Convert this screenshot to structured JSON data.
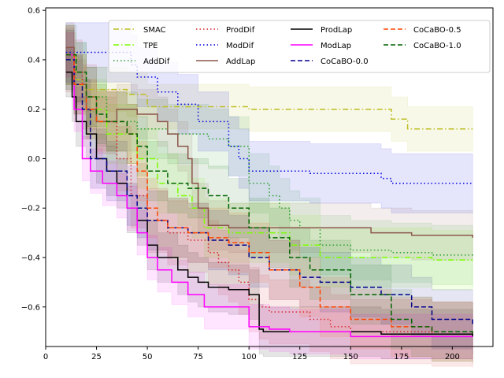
{
  "chart_data": {
    "type": "line",
    "title": "",
    "xlabel": "",
    "ylabel": "",
    "xlim": [
      0,
      220
    ],
    "ylim": [
      -0.76,
      0.61
    ],
    "xticks": [
      0,
      25,
      50,
      75,
      100,
      125,
      150,
      175,
      200
    ],
    "xtick_labels": [
      "0",
      "25",
      "50",
      "75",
      "100",
      "125",
      "150",
      "175",
      "200"
    ],
    "yticks": [
      -0.6,
      -0.4,
      -0.2,
      0.0,
      0.2,
      0.4,
      0.6
    ],
    "ytick_labels": [
      "−0.6",
      "−0.4",
      "−0.2",
      "0.0",
      "0.2",
      "0.4",
      "0.6"
    ],
    "legend_position": "top-right",
    "legend_columns": 4,
    "series": [
      {
        "name": "SMAC",
        "color": "#bcbd22",
        "dash": "dashdot",
        "band": 0.09,
        "points": [
          [
            10,
            0.42
          ],
          [
            15,
            0.32
          ],
          [
            18,
            0.28
          ],
          [
            40,
            0.26
          ],
          [
            50,
            0.21
          ],
          [
            95,
            0.21
          ],
          [
            100,
            0.2
          ],
          [
            168,
            0.2
          ],
          [
            170,
            0.16
          ],
          [
            178,
            0.12
          ],
          [
            210,
            0.12
          ]
        ]
      },
      {
        "name": "TPE",
        "color": "#7cfc00",
        "dash": "dashdot",
        "band": 0.12,
        "points": [
          [
            10,
            0.4
          ],
          [
            14,
            0.3
          ],
          [
            20,
            0.2
          ],
          [
            30,
            0.1
          ],
          [
            45,
            0.0
          ],
          [
            55,
            -0.1
          ],
          [
            65,
            -0.15
          ],
          [
            72,
            -0.2
          ],
          [
            78,
            -0.28
          ],
          [
            90,
            -0.3
          ],
          [
            120,
            -0.35
          ],
          [
            135,
            -0.4
          ],
          [
            150,
            -0.4
          ],
          [
            190,
            -0.41
          ],
          [
            210,
            -0.41
          ]
        ]
      },
      {
        "name": "AddDif",
        "color": "#2ca02c",
        "dash": "dotted",
        "band": 0.12,
        "points": [
          [
            10,
            0.42
          ],
          [
            14,
            0.35
          ],
          [
            20,
            0.25
          ],
          [
            30,
            0.15
          ],
          [
            45,
            0.12
          ],
          [
            60,
            0.1
          ],
          [
            70,
            0.1
          ],
          [
            80,
            0.08
          ],
          [
            90,
            0.05
          ],
          [
            100,
            -0.1
          ],
          [
            110,
            -0.15
          ],
          [
            115,
            -0.2
          ],
          [
            120,
            -0.25
          ],
          [
            125,
            -0.28
          ],
          [
            135,
            -0.35
          ],
          [
            150,
            -0.37
          ],
          [
            170,
            -0.38
          ],
          [
            190,
            -0.39
          ],
          [
            210,
            -0.4
          ]
        ]
      },
      {
        "name": "ProdDif",
        "color": "#d62728",
        "dash": "dotted",
        "band": 0.13,
        "points": [
          [
            10,
            0.4
          ],
          [
            14,
            0.35
          ],
          [
            18,
            0.25
          ],
          [
            25,
            0.15
          ],
          [
            35,
            0.0
          ],
          [
            42,
            -0.15
          ],
          [
            50,
            -0.25
          ],
          [
            60,
            -0.3
          ],
          [
            70,
            -0.33
          ],
          [
            80,
            -0.38
          ],
          [
            85,
            -0.42
          ],
          [
            90,
            -0.45
          ],
          [
            95,
            -0.5
          ],
          [
            100,
            -0.57
          ],
          [
            105,
            -0.6
          ],
          [
            110,
            -0.62
          ],
          [
            120,
            -0.62
          ],
          [
            130,
            -0.65
          ],
          [
            140,
            -0.68
          ],
          [
            150,
            -0.7
          ],
          [
            170,
            -0.7
          ],
          [
            190,
            -0.71
          ],
          [
            210,
            -0.72
          ]
        ]
      },
      {
        "name": "ModDif",
        "color": "#0000dd",
        "dash": "dotted",
        "band": 0.12,
        "points": [
          [
            10,
            0.43
          ],
          [
            38,
            0.43
          ],
          [
            42,
            0.38
          ],
          [
            45,
            0.33
          ],
          [
            55,
            0.27
          ],
          [
            65,
            0.22
          ],
          [
            75,
            0.15
          ],
          [
            85,
            0.15
          ],
          [
            90,
            0.05
          ],
          [
            95,
            0.0
          ],
          [
            100,
            -0.05
          ],
          [
            110,
            -0.05
          ],
          [
            125,
            -0.05
          ],
          [
            130,
            -0.06
          ],
          [
            160,
            -0.06
          ],
          [
            165,
            -0.08
          ],
          [
            170,
            -0.1
          ],
          [
            210,
            -0.1
          ]
        ]
      },
      {
        "name": "AddLap",
        "color": "#8c564b",
        "dash": "solid",
        "band": 0.1,
        "points": [
          [
            10,
            0.45
          ],
          [
            14,
            0.3
          ],
          [
            20,
            0.2
          ],
          [
            25,
            0.15
          ],
          [
            35,
            0.2
          ],
          [
            45,
            0.18
          ],
          [
            55,
            0.15
          ],
          [
            60,
            0.1
          ],
          [
            65,
            0.05
          ],
          [
            70,
            0.0
          ],
          [
            72,
            -0.1
          ],
          [
            75,
            -0.2
          ],
          [
            80,
            -0.27
          ],
          [
            90,
            -0.28
          ],
          [
            120,
            -0.28
          ],
          [
            140,
            -0.28
          ],
          [
            160,
            -0.3
          ],
          [
            180,
            -0.31
          ],
          [
            210,
            -0.32
          ]
        ]
      },
      {
        "name": "ProdLap",
        "color": "#000000",
        "dash": "solid",
        "band": 0.1,
        "points": [
          [
            10,
            0.35
          ],
          [
            13,
            0.25
          ],
          [
            15,
            0.15
          ],
          [
            20,
            0.1
          ],
          [
            25,
            0.0
          ],
          [
            30,
            -0.05
          ],
          [
            35,
            -0.1
          ],
          [
            40,
            -0.2
          ],
          [
            45,
            -0.25
          ],
          [
            50,
            -0.35
          ],
          [
            55,
            -0.4
          ],
          [
            65,
            -0.45
          ],
          [
            70,
            -0.48
          ],
          [
            75,
            -0.5
          ],
          [
            80,
            -0.52
          ],
          [
            90,
            -0.53
          ],
          [
            100,
            -0.55
          ],
          [
            104,
            -0.55
          ],
          [
            105,
            -0.69
          ],
          [
            107,
            -0.7
          ],
          [
            140,
            -0.7
          ],
          [
            165,
            -0.71
          ],
          [
            210,
            -0.72
          ]
        ]
      },
      {
        "name": "ModLap",
        "color": "#ff00ff",
        "dash": "solid",
        "band": 0.09,
        "points": [
          [
            10,
            0.42
          ],
          [
            14,
            0.2
          ],
          [
            18,
            0.0
          ],
          [
            22,
            -0.05
          ],
          [
            28,
            -0.1
          ],
          [
            35,
            -0.15
          ],
          [
            40,
            -0.2
          ],
          [
            45,
            -0.3
          ],
          [
            50,
            -0.4
          ],
          [
            55,
            -0.45
          ],
          [
            62,
            -0.5
          ],
          [
            70,
            -0.55
          ],
          [
            78,
            -0.6
          ],
          [
            90,
            -0.6
          ],
          [
            100,
            -0.68
          ],
          [
            110,
            -0.69
          ],
          [
            120,
            -0.7
          ],
          [
            150,
            -0.72
          ],
          [
            210,
            -0.72
          ]
        ]
      },
      {
        "name": "CoCaBO-0.0",
        "color": "#00008b",
        "dash": "dashed",
        "band": 0.12,
        "points": [
          [
            10,
            0.4
          ],
          [
            14,
            0.3
          ],
          [
            18,
            0.2
          ],
          [
            22,
            0.0
          ],
          [
            30,
            -0.05
          ],
          [
            40,
            -0.15
          ],
          [
            45,
            -0.2
          ],
          [
            50,
            -0.25
          ],
          [
            60,
            -0.28
          ],
          [
            70,
            -0.3
          ],
          [
            80,
            -0.33
          ],
          [
            90,
            -0.35
          ],
          [
            100,
            -0.4
          ],
          [
            110,
            -0.45
          ],
          [
            125,
            -0.48
          ],
          [
            135,
            -0.5
          ],
          [
            150,
            -0.52
          ],
          [
            165,
            -0.55
          ],
          [
            180,
            -0.6
          ],
          [
            190,
            -0.65
          ],
          [
            210,
            -0.67
          ]
        ]
      },
      {
        "name": "CoCaBO-0.5",
        "color": "#ff4500",
        "dash": "dashed",
        "band": 0.12,
        "points": [
          [
            10,
            0.42
          ],
          [
            14,
            0.3
          ],
          [
            20,
            0.2
          ],
          [
            25,
            0.15
          ],
          [
            35,
            0.15
          ],
          [
            40,
            0.1
          ],
          [
            45,
            -0.05
          ],
          [
            50,
            -0.2
          ],
          [
            55,
            -0.25
          ],
          [
            60,
            -0.28
          ],
          [
            70,
            -0.3
          ],
          [
            80,
            -0.32
          ],
          [
            90,
            -0.34
          ],
          [
            100,
            -0.38
          ],
          [
            110,
            -0.45
          ],
          [
            125,
            -0.52
          ],
          [
            135,
            -0.6
          ],
          [
            150,
            -0.65
          ],
          [
            170,
            -0.68
          ],
          [
            190,
            -0.7
          ],
          [
            210,
            -0.71
          ]
        ]
      },
      {
        "name": "CoCaBO-1.0",
        "color": "#006400",
        "dash": "dashed",
        "band": 0.12,
        "points": [
          [
            10,
            0.42
          ],
          [
            15,
            0.35
          ],
          [
            20,
            0.25
          ],
          [
            25,
            0.18
          ],
          [
            30,
            0.15
          ],
          [
            40,
            0.1
          ],
          [
            45,
            0.05
          ],
          [
            50,
            -0.05
          ],
          [
            60,
            -0.1
          ],
          [
            70,
            -0.12
          ],
          [
            80,
            -0.15
          ],
          [
            90,
            -0.2
          ],
          [
            100,
            -0.28
          ],
          [
            110,
            -0.32
          ],
          [
            120,
            -0.4
          ],
          [
            130,
            -0.45
          ],
          [
            150,
            -0.55
          ],
          [
            170,
            -0.65
          ],
          [
            180,
            -0.68
          ],
          [
            190,
            -0.7
          ],
          [
            210,
            -0.71
          ]
        ]
      }
    ]
  }
}
